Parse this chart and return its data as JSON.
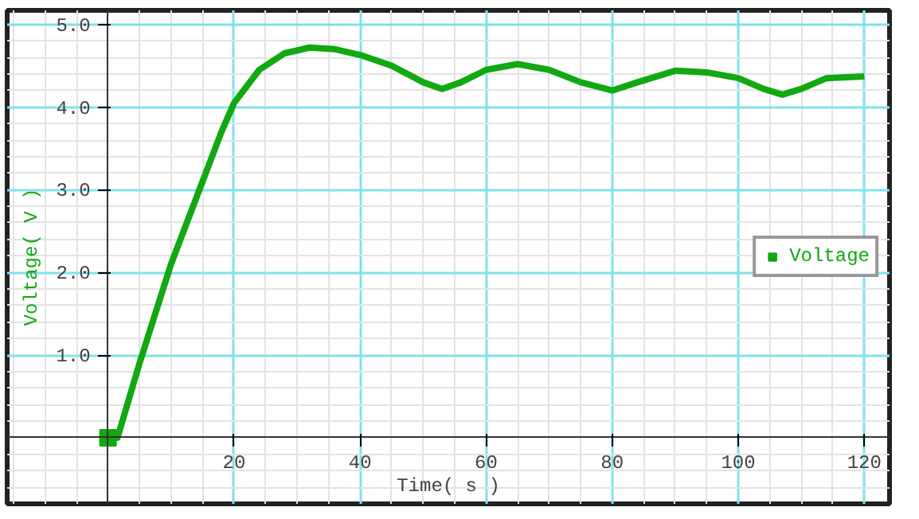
{
  "chart_data": {
    "type": "line",
    "xlabel": "Time( s )",
    "ylabel": "Voltage( V )",
    "x": [
      0,
      1.5,
      5,
      10,
      15,
      18,
      20,
      24,
      28,
      32,
      36,
      40,
      45,
      50,
      53,
      56,
      60,
      65,
      70,
      75,
      80,
      84,
      90,
      95,
      100,
      104,
      107,
      110,
      114,
      120
    ],
    "series": [
      {
        "name": "Voltage",
        "color": "#11a811",
        "values": [
          0,
          0,
          0.9,
          2.1,
          3.1,
          3.7,
          4.05,
          4.45,
          4.65,
          4.72,
          4.7,
          4.63,
          4.5,
          4.3,
          4.22,
          4.3,
          4.45,
          4.52,
          4.45,
          4.3,
          4.2,
          4.3,
          4.44,
          4.42,
          4.35,
          4.22,
          4.15,
          4.22,
          4.35,
          4.37
        ]
      }
    ],
    "xlim": [
      -16,
      124
    ],
    "ylim": [
      -0.8,
      5.17
    ],
    "xticks": [
      20,
      40,
      60,
      80,
      100,
      120
    ],
    "yticks": [
      {
        "value": 1,
        "label": "1.0"
      },
      {
        "value": 2,
        "label": "2.0"
      },
      {
        "value": 3,
        "label": "3.0"
      },
      {
        "value": 4,
        "label": "4.0"
      },
      {
        "value": 5,
        "label": "5.0"
      }
    ],
    "grid": true,
    "legend": "right",
    "marker": "none",
    "line_style": "solid"
  }
}
